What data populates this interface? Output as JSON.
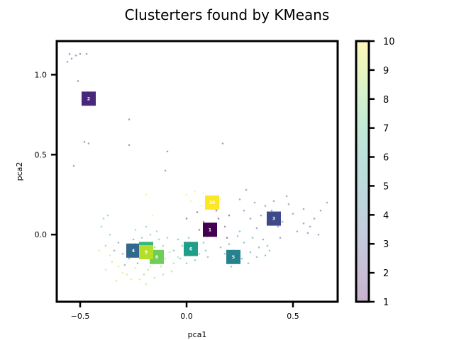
{
  "chart_data": {
    "type": "scatter",
    "title": "Clusterters found by KMeans",
    "xlabel": "pca1",
    "ylabel": "pca2",
    "xlim": [
      -0.61,
      0.71
    ],
    "ylim": [
      -0.42,
      1.21
    ],
    "xticks": [
      -0.5,
      0.0,
      0.5
    ],
    "xtick_labels": [
      "−0.5",
      "0.0",
      "0.5"
    ],
    "yticks": [
      0.0,
      0.5,
      1.0
    ],
    "ytick_labels": [
      "0.0",
      "0.5",
      "1.0"
    ],
    "grid": false,
    "colormap": "viridis",
    "colorbar": {
      "range": [
        1,
        10
      ],
      "ticks": [
        1,
        2,
        3,
        4,
        5,
        6,
        7,
        8,
        9,
        10
      ],
      "tick_labels": [
        "1",
        "2",
        "3",
        "4",
        "5",
        "6",
        "7",
        "8",
        "9",
        "10"
      ],
      "alpha": 0.3
    },
    "cluster_centers": [
      {
        "label": "1",
        "cluster": 1,
        "x": 0.11,
        "y": 0.03
      },
      {
        "label": "2",
        "cluster": 2,
        "x": -0.46,
        "y": 0.85
      },
      {
        "label": "3",
        "cluster": 3,
        "x": 0.41,
        "y": 0.1
      },
      {
        "label": "4",
        "cluster": 4,
        "x": -0.25,
        "y": -0.1
      },
      {
        "label": "5",
        "cluster": 5,
        "x": 0.22,
        "y": -0.14
      },
      {
        "label": "6",
        "cluster": 6,
        "x": 0.02,
        "y": -0.09
      },
      {
        "label": "7",
        "cluster": 7,
        "x": -0.19,
        "y": -0.09
      },
      {
        "label": "8",
        "cluster": 8,
        "x": -0.14,
        "y": -0.14
      },
      {
        "label": "9",
        "cluster": 9,
        "x": -0.19,
        "y": -0.11
      },
      {
        "label": "10",
        "cluster": 10,
        "x": 0.12,
        "y": 0.2
      }
    ],
    "points": [
      [
        -0.55,
        1.13,
        2
      ],
      [
        -0.52,
        1.12,
        2
      ],
      [
        -0.5,
        1.13,
        2
      ],
      [
        -0.47,
        1.13,
        2
      ],
      [
        -0.56,
        1.08,
        2
      ],
      [
        -0.54,
        1.1,
        2
      ],
      [
        -0.51,
        0.96,
        2
      ],
      [
        -0.48,
        0.58,
        2
      ],
      [
        -0.46,
        0.57,
        2
      ],
      [
        -0.53,
        0.43,
        2
      ],
      [
        -0.27,
        0.72,
        2
      ],
      [
        -0.27,
        0.56,
        2
      ],
      [
        -0.09,
        0.52,
        2
      ],
      [
        0.17,
        0.57,
        2
      ],
      [
        -0.1,
        0.4,
        2
      ],
      [
        0.1,
        0.06,
        1
      ],
      [
        0.13,
        0.02,
        1
      ],
      [
        0.08,
        0.08,
        1
      ],
      [
        0.15,
        0.1,
        1
      ],
      [
        0.18,
        0.05,
        1
      ],
      [
        0.06,
        0.03,
        1
      ],
      [
        0.1,
        -0.01,
        1
      ],
      [
        0.2,
        0.12,
        1
      ],
      [
        0.14,
        0.15,
        1
      ],
      [
        0.05,
        0.14,
        1
      ],
      [
        0.0,
        0.1,
        1
      ],
      [
        0.19,
        -0.02,
        1
      ],
      [
        0.35,
        0.12,
        3
      ],
      [
        0.4,
        0.15,
        3
      ],
      [
        0.45,
        0.08,
        3
      ],
      [
        0.5,
        0.13,
        3
      ],
      [
        0.55,
        0.16,
        3
      ],
      [
        0.6,
        0.1,
        3
      ],
      [
        0.63,
        0.15,
        3
      ],
      [
        0.58,
        0.05,
        3
      ],
      [
        0.52,
        0.02,
        3
      ],
      [
        0.43,
        0.05,
        3
      ],
      [
        0.38,
        0.07,
        3
      ],
      [
        0.33,
        0.04,
        3
      ],
      [
        0.3,
        0.1,
        3
      ],
      [
        0.27,
        0.15,
        3
      ],
      [
        0.32,
        0.2,
        3
      ],
      [
        0.37,
        0.18,
        3
      ],
      [
        0.48,
        0.19,
        3
      ],
      [
        0.55,
        0.07,
        3
      ],
      [
        0.66,
        0.2,
        3
      ],
      [
        0.57,
        0.01,
        3
      ],
      [
        0.62,
        0.0,
        3
      ],
      [
        0.44,
        -0.02,
        3
      ],
      [
        0.36,
        -0.03,
        3
      ],
      [
        0.41,
        0.21,
        3
      ],
      [
        0.28,
        0.28,
        3
      ],
      [
        0.25,
        0.22,
        3
      ],
      [
        0.47,
        0.24,
        3
      ],
      [
        0.18,
        -0.12,
        5
      ],
      [
        0.22,
        -0.1,
        5
      ],
      [
        0.26,
        -0.15,
        5
      ],
      [
        0.3,
        -0.11,
        5
      ],
      [
        0.34,
        -0.08,
        5
      ],
      [
        0.37,
        -0.13,
        5
      ],
      [
        0.2,
        -0.06,
        5
      ],
      [
        0.27,
        -0.05,
        5
      ],
      [
        0.31,
        -0.02,
        5
      ],
      [
        0.24,
        -0.01,
        5
      ],
      [
        0.38,
        -0.07,
        5
      ],
      [
        0.16,
        -0.08,
        5
      ],
      [
        0.29,
        -0.18,
        5
      ],
      [
        0.33,
        -0.14,
        5
      ],
      [
        0.39,
        -0.1,
        5
      ],
      [
        0.25,
        0.02,
        5
      ],
      [
        0.21,
        -0.2,
        5
      ],
      [
        0.02,
        -0.05,
        6
      ],
      [
        0.05,
        -0.08,
        6
      ],
      [
        -0.02,
        -0.07,
        6
      ],
      [
        0.06,
        -0.12,
        6
      ],
      [
        -0.01,
        -0.12,
        6
      ],
      [
        0.08,
        -0.05,
        6
      ],
      [
        -0.04,
        -0.03,
        6
      ],
      [
        0.04,
        -0.16,
        6
      ],
      [
        0.09,
        -0.1,
        6
      ],
      [
        -0.03,
        -0.15,
        6
      ],
      [
        0.01,
        -0.02,
        6
      ],
      [
        -0.06,
        -0.1,
        6
      ],
      [
        0.1,
        -0.14,
        6
      ],
      [
        0.0,
        -0.18,
        6
      ],
      [
        -0.28,
        -0.08,
        4
      ],
      [
        -0.3,
        -0.12,
        4
      ],
      [
        -0.24,
        -0.06,
        4
      ],
      [
        -0.22,
        -0.14,
        4
      ],
      [
        -0.27,
        -0.15,
        4
      ],
      [
        -0.32,
        -0.05,
        4
      ],
      [
        -0.25,
        -0.03,
        4
      ],
      [
        -0.2,
        -0.05,
        4
      ],
      [
        -0.34,
        -0.1,
        4
      ],
      [
        -0.29,
        -0.19,
        4
      ],
      [
        -0.23,
        -0.18,
        4
      ],
      [
        -0.18,
        -0.05,
        7
      ],
      [
        -0.15,
        -0.08,
        7
      ],
      [
        -0.21,
        -0.02,
        7
      ],
      [
        -0.13,
        -0.03,
        7
      ],
      [
        -0.17,
        0.0,
        7
      ],
      [
        -0.11,
        -0.07,
        7
      ],
      [
        -0.2,
        -0.12,
        7
      ],
      [
        -0.14,
        0.02,
        7
      ],
      [
        -0.09,
        -0.02,
        7
      ],
      [
        -0.24,
        0.03,
        7
      ],
      [
        -0.19,
        0.05,
        7
      ],
      [
        -0.38,
        -0.07,
        7
      ],
      [
        -0.36,
        0.0,
        7
      ],
      [
        -0.4,
        0.05,
        7
      ],
      [
        -0.37,
        0.12,
        7
      ],
      [
        -0.39,
        0.1,
        7
      ],
      [
        -0.14,
        -0.12,
        8
      ],
      [
        -0.1,
        -0.15,
        8
      ],
      [
        -0.16,
        -0.18,
        8
      ],
      [
        -0.12,
        -0.2,
        8
      ],
      [
        -0.08,
        -0.11,
        8
      ],
      [
        -0.18,
        -0.22,
        8
      ],
      [
        -0.11,
        -0.25,
        8
      ],
      [
        -0.06,
        -0.18,
        8
      ],
      [
        -0.15,
        -0.27,
        8
      ],
      [
        -0.2,
        -0.25,
        8
      ],
      [
        -0.07,
        -0.23,
        8
      ],
      [
        -0.04,
        -0.14,
        8
      ],
      [
        -0.2,
        -0.1,
        9
      ],
      [
        -0.24,
        -0.21,
        9
      ],
      [
        -0.28,
        -0.25,
        9
      ],
      [
        -0.32,
        -0.2,
        9
      ],
      [
        -0.26,
        -0.28,
        9
      ],
      [
        -0.35,
        -0.17,
        9
      ],
      [
        -0.3,
        -0.24,
        9
      ],
      [
        -0.22,
        -0.28,
        9
      ],
      [
        -0.19,
        -0.31,
        9
      ],
      [
        -0.38,
        -0.22,
        9
      ],
      [
        -0.33,
        -0.29,
        9
      ],
      [
        -0.36,
        -0.13,
        9
      ],
      [
        -0.17,
        -0.2,
        9
      ],
      [
        -0.27,
        -0.06,
        9
      ],
      [
        -0.41,
        -0.1,
        9
      ],
      [
        0.12,
        0.24,
        10
      ],
      [
        0.08,
        0.26,
        10
      ],
      [
        0.16,
        0.22,
        10
      ],
      [
        0.04,
        0.27,
        10
      ],
      [
        0.02,
        0.21,
        10
      ],
      [
        0.14,
        0.19,
        10
      ],
      [
        0.07,
        0.18,
        10
      ],
      [
        -0.19,
        0.25,
        10
      ],
      [
        0.0,
        0.25,
        10
      ],
      [
        0.1,
        0.17,
        10
      ],
      [
        -0.16,
        0.12,
        10
      ]
    ]
  }
}
